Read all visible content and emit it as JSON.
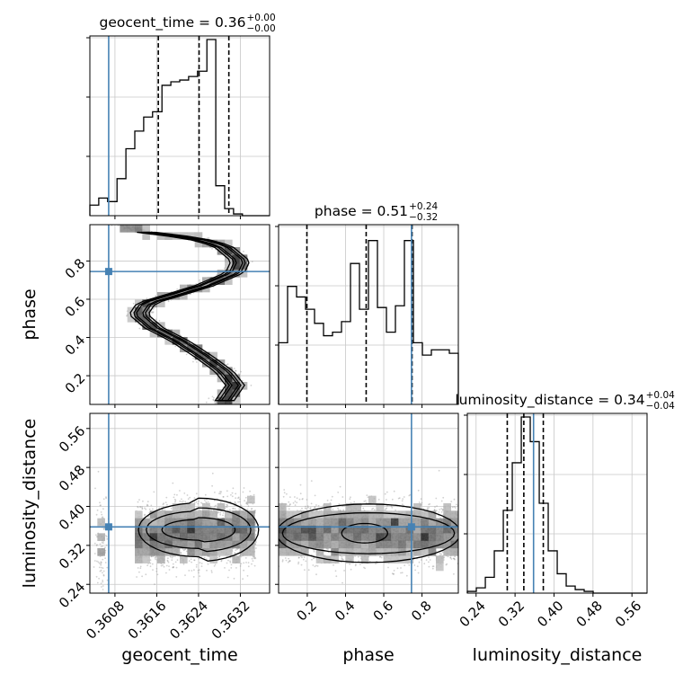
{
  "chart_data": {
    "type": "corner",
    "parameters": [
      "geocent_time",
      "phase",
      "luminosity_distance"
    ],
    "axis_labels": {
      "geocent_time": "geocent_time",
      "phase": "phase",
      "luminosity_distance": "luminosity_distance"
    },
    "titles": [
      {
        "param": "geocent_time",
        "main": "geocent_time = 0.36",
        "plus": "+0.00",
        "minus": "−0.00"
      },
      {
        "param": "phase",
        "main": "phase = 0.51",
        "plus": "+0.24",
        "minus": "−0.32"
      },
      {
        "param": "luminosity_distance",
        "main": "luminosity_distance = 0.34",
        "plus": "+0.04",
        "minus": "−0.04"
      }
    ],
    "ranges": {
      "geocent_time": [
        0.36032,
        0.36376
      ],
      "phase": [
        0.05,
        0.99
      ],
      "luminosity_distance": [
        0.222,
        0.591
      ]
    },
    "ticks": {
      "geocent_time": {
        "values": [
          0.3608,
          0.3616,
          0.3624,
          0.3632
        ],
        "labels": [
          "0.3608",
          "0.3616",
          "0.3624",
          "0.3632"
        ]
      },
      "phase": {
        "values": [
          0.2,
          0.4,
          0.6,
          0.8
        ],
        "labels": [
          "0.2",
          "0.4",
          "0.6",
          "0.8"
        ]
      },
      "luminosity_distance": {
        "values": [
          0.24,
          0.32,
          0.4,
          0.48,
          0.56
        ],
        "labels": [
          "0.24",
          "0.32",
          "0.40",
          "0.48",
          "0.56"
        ]
      }
    },
    "truths": {
      "geocent_time": 0.36068,
      "phase": 0.745,
      "luminosity_distance": 0.358
    },
    "quantiles": {
      "geocent_time": [
        0.36163,
        0.36241,
        0.36298
      ],
      "phase": [
        0.198,
        0.508,
        0.748
      ],
      "luminosity_distance": [
        0.304,
        0.338,
        0.378
      ]
    },
    "histograms": {
      "geocent_time": {
        "edges": [
          0.36032,
          0.36049,
          0.36066,
          0.36084,
          0.36101,
          0.36118,
          0.36135,
          0.36152,
          0.3617,
          0.36187,
          0.36204,
          0.36221,
          0.36238,
          0.36256,
          0.36273,
          0.3629,
          0.36307,
          0.36324,
          0.36342,
          0.36359,
          0.36376
        ],
        "counts": [
          0.06,
          0.1,
          0.08,
          0.21,
          0.38,
          0.48,
          0.56,
          0.59,
          0.74,
          0.76,
          0.77,
          0.79,
          0.82,
          1.0,
          0.17,
          0.04,
          0.01,
          0.0,
          0.0,
          0.0
        ]
      },
      "phase": {
        "edges": [
          0.05,
          0.097,
          0.144,
          0.191,
          0.238,
          0.285,
          0.332,
          0.379,
          0.426,
          0.473,
          0.52,
          0.567,
          0.614,
          0.661,
          0.708,
          0.755,
          0.802,
          0.849,
          0.896,
          0.943,
          0.99
        ],
        "counts": [
          0.35,
          0.67,
          0.61,
          0.54,
          0.46,
          0.39,
          0.41,
          0.47,
          0.8,
          0.54,
          0.93,
          0.55,
          0.41,
          0.56,
          0.93,
          0.35,
          0.28,
          0.31,
          0.31,
          0.29
        ]
      },
      "luminosity_distance": {
        "edges": [
          0.222,
          0.2405,
          0.259,
          0.2774,
          0.2959,
          0.3143,
          0.3328,
          0.3512,
          0.3697,
          0.3881,
          0.4066,
          0.425,
          0.4435,
          0.4619,
          0.4804,
          0.4988,
          0.5173,
          0.5357,
          0.5542,
          0.5726,
          0.591
        ],
        "counts": [
          0.01,
          0.03,
          0.09,
          0.24,
          0.47,
          0.74,
          1.0,
          0.86,
          0.51,
          0.24,
          0.11,
          0.04,
          0.02,
          0.01,
          0.0,
          0.0,
          0.0,
          0.0,
          0.0,
          0.0
        ]
      }
    },
    "grid": true
  }
}
